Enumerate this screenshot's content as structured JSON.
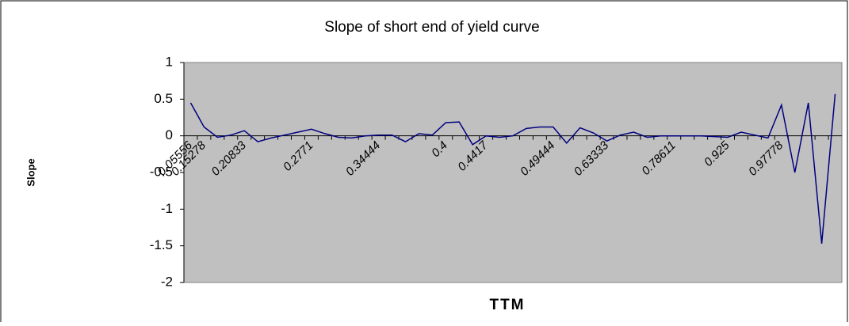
{
  "chart_data": {
    "type": "line",
    "title": "Slope of short end of yield curve",
    "x_label": "TTM",
    "y_label": "Slope",
    "categories": [
      "0.05556",
      "0.15278",
      null,
      null,
      "0.20833",
      null,
      null,
      null,
      null,
      "0.2771",
      null,
      null,
      null,
      null,
      "0.34444",
      null,
      null,
      null,
      null,
      "0.4",
      null,
      null,
      "0.4417",
      null,
      null,
      null,
      null,
      "0.49444",
      null,
      null,
      null,
      "0.63333",
      null,
      null,
      null,
      null,
      "0.78611",
      null,
      null,
      null,
      "0.925",
      null,
      null,
      null,
      "0.97778",
      null,
      null,
      null,
      null
    ],
    "series": [
      {
        "name": "Slope",
        "color": "#000080",
        "values": [
          0.45,
          0.12,
          -0.02,
          0.01,
          0.07,
          -0.08,
          -0.03,
          0.01,
          0.05,
          0.09,
          0.03,
          -0.02,
          -0.03,
          0,
          0.01,
          0.01,
          -0.08,
          0.03,
          0.01,
          0.18,
          0.19,
          -0.12,
          0,
          -0.02,
          0,
          0.1,
          0.12,
          0.12,
          -0.1,
          0.11,
          0.04,
          -0.07,
          0.01,
          0.05,
          -0.02,
          0,
          0,
          0,
          0,
          -0.01,
          -0.02,
          0.05,
          0.01,
          -0.03,
          0.42,
          -0.5,
          0.45,
          -1.47,
          0.57
        ]
      }
    ],
    "ylim": [
      -2,
      1
    ],
    "yticks": [
      -2,
      -1.5,
      -1,
      -0.5,
      0,
      0.5,
      1
    ],
    "plot_background": "#c0c0c0"
  }
}
